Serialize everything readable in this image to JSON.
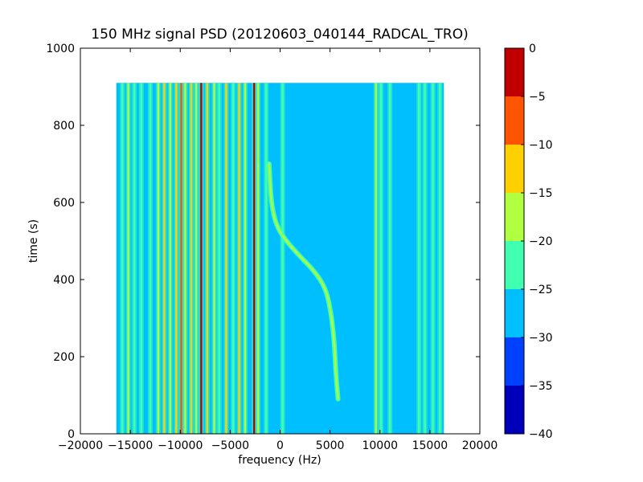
{
  "chart_data": {
    "type": "heatmap",
    "title": "150 MHz signal PSD (20120603_040144_RADCAL_TRO)",
    "xlabel": "frequency (Hz)",
    "ylabel": "time (s)",
    "xlim": [
      -20000,
      20000
    ],
    "ylim": [
      0,
      1000
    ],
    "xticks": [
      "−20000",
      "−15000",
      "−10000",
      "−5000",
      "0",
      "5000",
      "10000",
      "15000",
      "20000"
    ],
    "xtick_values": [
      -20000,
      -15000,
      -10000,
      -5000,
      0,
      5000,
      10000,
      15000,
      20000
    ],
    "yticks": [
      "0",
      "200",
      "400",
      "600",
      "800",
      "1000"
    ],
    "ytick_values": [
      0,
      200,
      400,
      600,
      800,
      1000
    ],
    "data_extent": {
      "x": [
        -16400,
        16400
      ],
      "y": [
        0,
        910
      ]
    },
    "background_level_db": -27.5,
    "colorbar": {
      "levels": [
        -40,
        -35,
        -30,
        -25,
        -20,
        -15,
        -10,
        -5,
        0
      ],
      "tick_labels": [
        "−40",
        "−35",
        "−30",
        "−25",
        "−20",
        "−15",
        "−10",
        "−5",
        "0"
      ],
      "colors": [
        "#0000bb",
        "#0040ff",
        "#00bfff",
        "#40ffb0",
        "#b0ff40",
        "#ffd000",
        "#ff5500",
        "#c00000"
      ]
    },
    "lines": [
      {
        "f": -15800,
        "db": -22
      },
      {
        "f": -15200,
        "db": -17
      },
      {
        "f": -14600,
        "db": -22
      },
      {
        "f": -13900,
        "db": -22
      },
      {
        "f": -13000,
        "db": -22
      },
      {
        "f": -12200,
        "db": -17
      },
      {
        "f": -11600,
        "db": -12
      },
      {
        "f": -11000,
        "db": -17
      },
      {
        "f": -10400,
        "db": -12
      },
      {
        "f": -9900,
        "db": -7
      },
      {
        "f": -9500,
        "db": -17
      },
      {
        "f": -8900,
        "db": -12
      },
      {
        "f": -8400,
        "db": -17
      },
      {
        "f": -7900,
        "db": -2
      },
      {
        "f": -7300,
        "db": -12
      },
      {
        "f": -6600,
        "db": -17
      },
      {
        "f": -6100,
        "db": -22
      },
      {
        "f": -5400,
        "db": -12
      },
      {
        "f": -4700,
        "db": -22
      },
      {
        "f": -4100,
        "db": -12
      },
      {
        "f": -3500,
        "db": -17
      },
      {
        "f": -2600,
        "db": -2
      },
      {
        "f": -2200,
        "db": -17
      },
      {
        "f": -1400,
        "db": -22
      },
      {
        "f": 250,
        "db": -22
      },
      {
        "f": 9600,
        "db": -17
      },
      {
        "f": 10100,
        "db": -22
      },
      {
        "f": 11000,
        "db": -22
      },
      {
        "f": 13900,
        "db": -22
      },
      {
        "f": 14500,
        "db": -22
      },
      {
        "f": 15300,
        "db": -22
      },
      {
        "f": 16000,
        "db": -22
      }
    ],
    "sweep": {
      "db": -17,
      "points": [
        {
          "t": 90,
          "f": 5800
        },
        {
          "t": 150,
          "f": 5600
        },
        {
          "t": 250,
          "f": 5400
        },
        {
          "t": 330,
          "f": 5000
        },
        {
          "t": 380,
          "f": 4500
        },
        {
          "t": 420,
          "f": 3500
        },
        {
          "t": 460,
          "f": 2000
        },
        {
          "t": 500,
          "f": 600
        },
        {
          "t": 540,
          "f": -400
        },
        {
          "t": 600,
          "f": -900
        },
        {
          "t": 700,
          "f": -1100
        }
      ]
    }
  }
}
